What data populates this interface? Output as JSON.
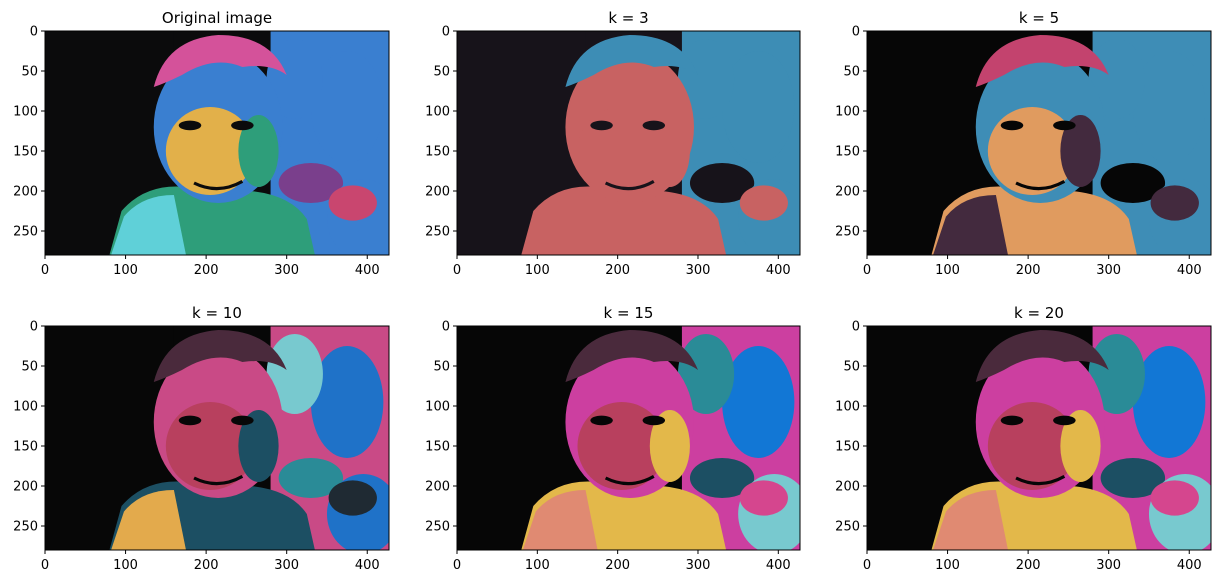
{
  "chart_data": [
    {
      "type": "image",
      "title": "Original image",
      "xticks": [
        0,
        100,
        200,
        300,
        400
      ],
      "yticks": [
        0,
        50,
        100,
        150,
        200,
        250
      ],
      "xlim": [
        0,
        427
      ],
      "ylim": [
        280,
        0
      ],
      "palette": [
        "#0b0b0c",
        "#c9466f",
        "#d4529a",
        "#e2b04a",
        "#3a7fd0",
        "#5fd0d8",
        "#2e9e7a",
        "#7a3f8c"
      ]
    },
    {
      "type": "image",
      "title": "k = 3",
      "k": 3,
      "xticks": [
        0,
        100,
        200,
        300,
        400
      ],
      "yticks": [
        0,
        50,
        100,
        150,
        200,
        250
      ],
      "xlim": [
        0,
        427
      ],
      "ylim": [
        280,
        0
      ],
      "palette": [
        "#17131a",
        "#c86262",
        "#3d8db5"
      ]
    },
    {
      "type": "image",
      "title": "k = 5",
      "k": 5,
      "xticks": [
        0,
        100,
        200,
        300,
        400
      ],
      "yticks": [
        0,
        50,
        100,
        150,
        200,
        250
      ],
      "xlim": [
        0,
        427
      ],
      "ylim": [
        280,
        0
      ],
      "palette": [
        "#060606",
        "#432a3e",
        "#c3436e",
        "#e09b5f",
        "#3e8db6"
      ]
    },
    {
      "type": "image",
      "title": "k = 10",
      "k": 10,
      "xticks": [
        0,
        100,
        200,
        300,
        400
      ],
      "yticks": [
        0,
        50,
        100,
        150,
        200,
        250
      ],
      "xlim": [
        0,
        427
      ],
      "ylim": [
        280,
        0
      ],
      "palette": [
        "#070707",
        "#1f2a33",
        "#4a2a3c",
        "#b8405e",
        "#c94a86",
        "#e3aa4c",
        "#1c4f63",
        "#2a8b97",
        "#78c9cf",
        "#1f72c8"
      ]
    },
    {
      "type": "image",
      "title": "k = 15",
      "k": 15,
      "xticks": [
        0,
        100,
        200,
        300,
        400
      ],
      "yticks": [
        0,
        50,
        100,
        150,
        200,
        250
      ],
      "xlim": [
        0,
        427
      ],
      "ylim": [
        280,
        0
      ],
      "palette": [
        "#060606",
        "#1d2a33",
        "#4a2a3c",
        "#b8405e",
        "#cc3fa0",
        "#e08a72",
        "#e3b84a",
        "#1c4f63",
        "#2a8b97",
        "#78c9cf",
        "#1277d5",
        "#d5468e",
        "#7a3f8c",
        "#3a6f82",
        "#e06a5a"
      ]
    },
    {
      "type": "image",
      "title": "k = 20",
      "k": 20,
      "xticks": [
        0,
        100,
        200,
        300,
        400
      ],
      "yticks": [
        0,
        50,
        100,
        150,
        200,
        250
      ],
      "xlim": [
        0,
        427
      ],
      "ylim": [
        280,
        0
      ],
      "palette": [
        "#060606",
        "#1d2a33",
        "#4a2a3c",
        "#b8405e",
        "#cc3fa0",
        "#e08a72",
        "#e3b84a",
        "#1c4f63",
        "#2a8b97",
        "#78c9cf",
        "#1277d5",
        "#d5468e",
        "#7a3f8c",
        "#3a6f82",
        "#e06a5a",
        "#a22fb0",
        "#5ca6ad",
        "#9a6a5a",
        "#f0c060",
        "#0a5fa8"
      ]
    }
  ]
}
